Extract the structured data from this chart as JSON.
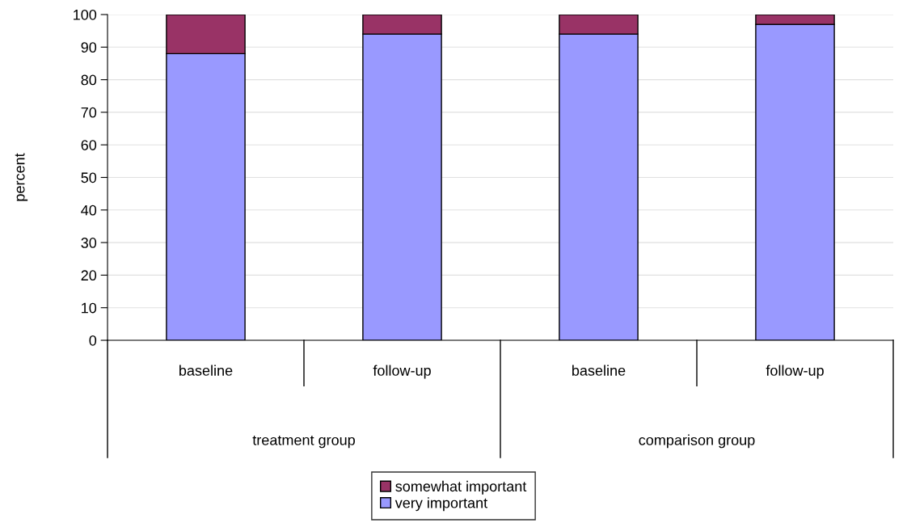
{
  "chart_data": {
    "type": "bar",
    "stacked": true,
    "ylabel": "percent",
    "categories": [
      "baseline",
      "follow-up",
      "baseline",
      "follow-up"
    ],
    "series": [
      {
        "name": "very important",
        "color": "#9999ff",
        "values": [
          88,
          94,
          94,
          97
        ]
      },
      {
        "name": "somewhat important",
        "color": "#993366",
        "values": [
          12,
          6,
          6,
          3
        ]
      }
    ],
    "annotations": [
      "treatment group",
      "comparison group"
    ],
    "ylim": [
      0,
      100
    ],
    "yticks": [
      0,
      10,
      20,
      30,
      40,
      50,
      60,
      70,
      80,
      90,
      100
    ],
    "grid": "y",
    "legend": "bottom"
  }
}
